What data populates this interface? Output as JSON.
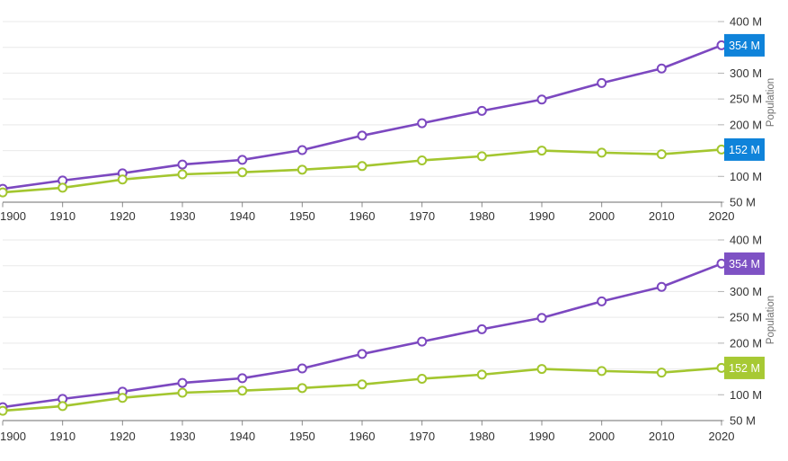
{
  "style": {
    "background": "#ffffff",
    "grid_color": "#e9e9e9",
    "axis_line_color": "#6e6e6e",
    "x_tick_color": "#8c8c8c",
    "y_tick_color": "#b4b4b4",
    "axis_label_color": "#333333",
    "axis_title_color": "#6e6e6e",
    "marker_fill": "#ffffff",
    "series_colors": [
      "#7c48c0",
      "#a3c62f"
    ],
    "charts": [
      {
        "callout_bgs": [
          "#0f83da",
          "#0f83da"
        ],
        "callout_fg": "#ffffff"
      },
      {
        "callout_bgs": [
          "#7e52c4",
          "#a7c934"
        ],
        "callout_fg": "#ffffff"
      }
    ]
  },
  "chart_data": [
    {
      "type": "line",
      "title": "",
      "xlabel": "",
      "ylabel": "Population",
      "ylim": [
        50,
        400
      ],
      "grid": true,
      "legend": "none",
      "x": [
        1900,
        1910,
        1920,
        1930,
        1940,
        1950,
        1960,
        1970,
        1980,
        1990,
        2000,
        2010,
        2020
      ],
      "x_tick_labels": [
        "1900",
        "1910",
        "1920",
        "1930",
        "1940",
        "1950",
        "1960",
        "1970",
        "1980",
        "1990",
        "2000",
        "2010",
        "2020"
      ],
      "y_ticks_visible": [
        {
          "value": 400,
          "label": "400 M"
        },
        {
          "value": 300,
          "label": "300 M"
        },
        {
          "value": 250,
          "label": "250 M"
        },
        {
          "value": 200,
          "label": "200 M"
        },
        {
          "value": 100,
          "label": "100 M"
        },
        {
          "value": 50,
          "label": "50 M"
        }
      ],
      "series": [
        {
          "name": "purple",
          "values": [
            76,
            92,
            106,
            123,
            132,
            151,
            179,
            203,
            227,
            249,
            281,
            309,
            354
          ],
          "last_point_label": "354 M"
        },
        {
          "name": "green",
          "values": [
            69,
            78,
            94,
            104,
            108,
            113,
            120,
            131,
            139,
            150,
            146,
            143,
            152
          ],
          "last_point_label": "152 M"
        }
      ]
    },
    {
      "type": "line",
      "title": "",
      "xlabel": "",
      "ylabel": "Population",
      "ylim": [
        50,
        400
      ],
      "grid": true,
      "legend": "none",
      "x": [
        1900,
        1910,
        1920,
        1930,
        1940,
        1950,
        1960,
        1970,
        1980,
        1990,
        2000,
        2010,
        2020
      ],
      "x_tick_labels": [
        "1900",
        "1910",
        "1920",
        "1930",
        "1940",
        "1950",
        "1960",
        "1970",
        "1980",
        "1990",
        "2000",
        "2010",
        "2020"
      ],
      "y_ticks_visible": [
        {
          "value": 400,
          "label": "400 M"
        },
        {
          "value": 300,
          "label": "300 M"
        },
        {
          "value": 250,
          "label": "250 M"
        },
        {
          "value": 200,
          "label": "200 M"
        },
        {
          "value": 100,
          "label": "100 M"
        },
        {
          "value": 50,
          "label": "50 M"
        }
      ],
      "series": [
        {
          "name": "purple",
          "values": [
            76,
            92,
            106,
            123,
            132,
            151,
            179,
            203,
            227,
            249,
            281,
            309,
            354
          ],
          "last_point_label": "354 M"
        },
        {
          "name": "green",
          "values": [
            69,
            78,
            94,
            104,
            108,
            113,
            120,
            131,
            139,
            150,
            146,
            143,
            152
          ],
          "last_point_label": "152 M"
        }
      ]
    }
  ]
}
